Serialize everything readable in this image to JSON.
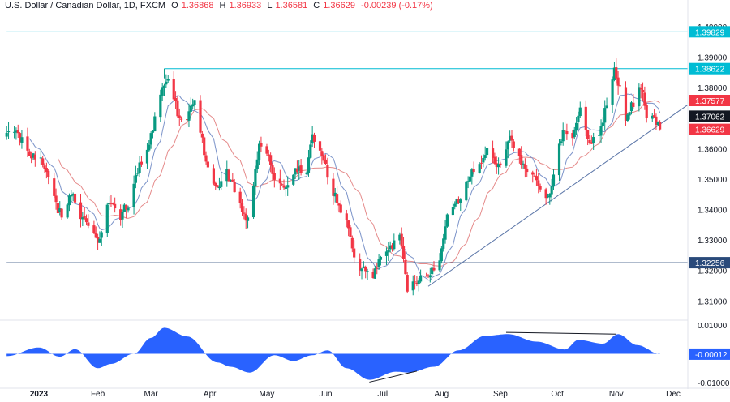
{
  "header": {
    "symbol": "U.S. Dollar / Canadian Dollar, 1D, FXCM",
    "open_label": "O",
    "open": "1.36868",
    "high_label": "H",
    "high": "1.36933",
    "low_label": "L",
    "low": "1.36581",
    "close_label": "C",
    "close": "1.36629",
    "change": "-0.00239 (-0.17%)"
  },
  "colors": {
    "up": "#089981",
    "down": "#f23645",
    "ma_fast": "#7b93c9",
    "ma_slow": "#e58a8a",
    "resistance": "#00bcd4",
    "support": "#2a4a7a",
    "trendline": "#5b76a8",
    "oscillator": "#2962ff",
    "badge_dark": "#131722"
  },
  "chart_data": [
    {
      "type": "candlestick",
      "title": "",
      "x_tick_labels": [
        "2023",
        "Feb",
        "Mar",
        "Apr",
        "May",
        "Jun",
        "Jul",
        "Aug",
        "Sep",
        "Oct",
        "Nov",
        "Dec"
      ],
      "y_tick_labels": [
        "1.40000",
        "1.39000",
        "1.38000",
        "1.36000",
        "1.35000",
        "1.34000",
        "1.33000",
        "1.32000",
        "1.31000"
      ],
      "ylim": [
        1.3045,
        1.4013
      ],
      "grid": false,
      "price_badges": [
        {
          "label": "1.39829",
          "value": 1.39829,
          "color": "#00bcd4"
        },
        {
          "label": "1.38622",
          "value": 1.38622,
          "color": "#00bcd4"
        },
        {
          "label": "1.37577",
          "value": 1.37577,
          "color": "#f23645"
        },
        {
          "label": "1.37062",
          "value": 1.37062,
          "color": "#131722"
        },
        {
          "label": "1.36629",
          "value": 1.36629,
          "color": "#f23645"
        },
        {
          "label": "1.32256",
          "value": 1.32256,
          "color": "#2a4a7a"
        }
      ],
      "horizontal_levels": [
        {
          "value": 1.39829,
          "from": "2022-12-15",
          "color": "#00bcd4"
        },
        {
          "value": 1.38622,
          "from": "2023-03-08",
          "color": "#00bcd4"
        },
        {
          "value": 1.32256,
          "from": "2022-12-15",
          "color": "#2a4a7a"
        }
      ],
      "trendline": {
        "from": [
          "2023-07-25",
          1.3148
        ],
        "to": [
          "2023-11-30",
          1.3735
        ]
      },
      "waypoints": [
        [
          "2022-12-15",
          1.364
        ],
        [
          "2022-12-20",
          1.366
        ],
        [
          "2022-12-27",
          1.358
        ],
        [
          "2023-01-02",
          1.356
        ],
        [
          "2023-01-06",
          1.352
        ],
        [
          "2023-01-10",
          1.341
        ],
        [
          "2023-01-13",
          1.338
        ],
        [
          "2023-01-18",
          1.3455
        ],
        [
          "2023-01-24",
          1.337
        ],
        [
          "2023-01-30",
          1.332
        ],
        [
          "2023-02-02",
          1.329
        ],
        [
          "2023-02-07",
          1.343
        ],
        [
          "2023-02-13",
          1.338
        ],
        [
          "2023-02-17",
          1.342
        ],
        [
          "2023-02-22",
          1.3525
        ],
        [
          "2023-02-28",
          1.362
        ],
        [
          "2023-03-07",
          1.38
        ],
        [
          "2023-03-10",
          1.384
        ],
        [
          "2023-03-15",
          1.372
        ],
        [
          "2023-03-20",
          1.369
        ],
        [
          "2023-03-24",
          1.376
        ],
        [
          "2023-03-29",
          1.359
        ],
        [
          "2023-04-04",
          1.347
        ],
        [
          "2023-04-10",
          1.352
        ],
        [
          "2023-04-17",
          1.342
        ],
        [
          "2023-04-21",
          1.336
        ],
        [
          "2023-04-27",
          1.36
        ],
        [
          "2023-05-01",
          1.358
        ],
        [
          "2023-05-05",
          1.35
        ],
        [
          "2023-05-11",
          1.348
        ],
        [
          "2023-05-16",
          1.354
        ],
        [
          "2023-05-22",
          1.352
        ],
        [
          "2023-05-25",
          1.364
        ],
        [
          "2023-05-31",
          1.356
        ],
        [
          "2023-06-06",
          1.344
        ],
        [
          "2023-06-12",
          1.337
        ],
        [
          "2023-06-16",
          1.323
        ],
        [
          "2023-06-21",
          1.32
        ],
        [
          "2023-06-26",
          1.318
        ],
        [
          "2023-06-30",
          1.324
        ],
        [
          "2023-07-06",
          1.328
        ],
        [
          "2023-07-10",
          1.333
        ],
        [
          "2023-07-14",
          1.313
        ],
        [
          "2023-07-18",
          1.317
        ],
        [
          "2023-07-25",
          1.317
        ],
        [
          "2023-07-31",
          1.324
        ],
        [
          "2023-08-04",
          1.338
        ],
        [
          "2023-08-10",
          1.343
        ],
        [
          "2023-08-15",
          1.35
        ],
        [
          "2023-08-22",
          1.356
        ],
        [
          "2023-08-25",
          1.361
        ],
        [
          "2023-08-31",
          1.354
        ],
        [
          "2023-09-06",
          1.364
        ],
        [
          "2023-09-12",
          1.356
        ],
        [
          "2023-09-18",
          1.351
        ],
        [
          "2023-09-22",
          1.346
        ],
        [
          "2023-09-26",
          1.345
        ],
        [
          "2023-09-29",
          1.35
        ],
        [
          "2023-10-04",
          1.367
        ],
        [
          "2023-10-09",
          1.364
        ],
        [
          "2023-10-13",
          1.372
        ],
        [
          "2023-10-18",
          1.362
        ],
        [
          "2023-10-23",
          1.365
        ],
        [
          "2023-10-27",
          1.375
        ],
        [
          "2023-10-31",
          1.386
        ],
        [
          "2023-11-02",
          1.382
        ],
        [
          "2023-11-06",
          1.37
        ],
        [
          "2023-11-09",
          1.374
        ],
        [
          "2023-11-14",
          1.38
        ],
        [
          "2023-11-17",
          1.371
        ],
        [
          "2023-11-21",
          1.369
        ],
        [
          "2023-11-24",
          1.3663
        ]
      ]
    },
    {
      "type": "area",
      "title": "",
      "y_tick_labels": [
        "0.01000",
        "-0.01000"
      ],
      "ylim": [
        -0.0108,
        0.0108
      ],
      "last_value_badge": "-0.00012",
      "series": [
        {
          "values": [
            [
              "2022-12-15",
              -0.0008
            ],
            [
              "2023-01-01",
              0.0022
            ],
            [
              "2023-01-12",
              -0.001
            ],
            [
              "2023-01-20",
              0.0016
            ],
            [
              "2023-02-01",
              -0.005
            ],
            [
              "2023-02-08",
              -0.0035
            ],
            [
              "2023-02-20",
              0.0
            ],
            [
              "2023-03-01",
              0.0055
            ],
            [
              "2023-03-08",
              0.009
            ],
            [
              "2023-03-20",
              0.006
            ],
            [
              "2023-04-05",
              -0.003
            ],
            [
              "2023-04-12",
              -0.0045
            ],
            [
              "2023-04-22",
              -0.0065
            ],
            [
              "2023-05-05",
              -0.0005
            ],
            [
              "2023-05-15",
              -0.0025
            ],
            [
              "2023-05-25",
              -0.0005
            ],
            [
              "2023-06-02",
              0.0012
            ],
            [
              "2023-06-12",
              -0.005
            ],
            [
              "2023-06-24",
              -0.009
            ],
            [
              "2023-07-08",
              -0.0062
            ],
            [
              "2023-07-15",
              -0.0065
            ],
            [
              "2023-07-28",
              -0.0045
            ],
            [
              "2023-08-10",
              0.0012
            ],
            [
              "2023-08-24",
              0.0062
            ],
            [
              "2023-09-05",
              0.0068
            ],
            [
              "2023-09-20",
              0.0042
            ],
            [
              "2023-10-05",
              0.0015
            ],
            [
              "2023-10-12",
              0.0048
            ],
            [
              "2023-10-25",
              0.0035
            ],
            [
              "2023-11-02",
              0.0068
            ],
            [
              "2023-11-12",
              0.003
            ],
            [
              "2023-11-24",
              -0.0001
            ]
          ]
        }
      ],
      "divergence_lines": [
        {
          "from": [
            "2023-06-24",
            -0.0098
          ],
          "to": [
            "2023-07-19",
            -0.006
          ]
        },
        {
          "from": [
            "2023-09-04",
            0.0074
          ],
          "to": [
            "2023-11-01",
            0.0068
          ]
        }
      ]
    }
  ]
}
